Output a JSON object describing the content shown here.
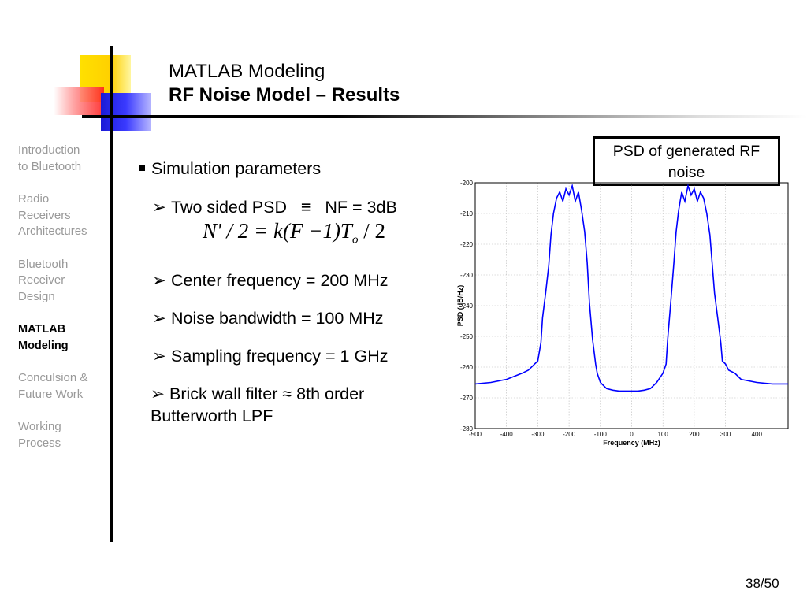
{
  "slide": {
    "title": "MATLAB Modeling",
    "subtitle": "RF Noise Model – Results",
    "page_number": "38/50"
  },
  "nav": {
    "items": [
      {
        "line1": "Introduction",
        "line2": "to Bluetooth",
        "line3": ""
      },
      {
        "line1": "Radio",
        "line2": "Receivers",
        "line3": "Architectures"
      },
      {
        "line1": "Bluetooth",
        "line2": "Receiver",
        "line3": "Design"
      },
      {
        "line1": "MATLAB",
        "line2": "Modeling",
        "line3": ""
      },
      {
        "line1": "Conculsion &",
        "line2": "Future Work",
        "line3": ""
      },
      {
        "line1": "Working",
        "line2": "Process",
        "line3": ""
      }
    ]
  },
  "content": {
    "main_bullet": "Simulation parameters",
    "sub_bullets": {
      "psd": "Two sided PSD   ≡   NF = 3dB",
      "formula_lhs": "N' / 2 = k(F −1)T",
      "formula_sub": "o",
      "formula_rhs": " / 2",
      "center_freq": "Center frequency = 200 MHz",
      "noise_bw": "Noise bandwidth = 100 MHz",
      "sampling": "Sampling frequency = 1 GHz",
      "filter_line1": "Brick wall filter ≈ 8th order",
      "filter_line2": "Butterworth LPF"
    }
  },
  "callout": {
    "line1": "PSD of generated RF",
    "line2": "noise"
  },
  "chart_data": {
    "type": "line",
    "title": "",
    "xlabel": "Frequency (MHz)",
    "ylabel": "PSD (dB/Hz)",
    "xlim": [
      -500,
      500
    ],
    "ylim": [
      -280,
      -200
    ],
    "xticks": [
      -500,
      -400,
      -300,
      -200,
      -100,
      0,
      100,
      200,
      300,
      400
    ],
    "yticks": [
      -200,
      -210,
      -220,
      -230,
      -240,
      -250,
      -260,
      -270,
      -280
    ],
    "grid": true,
    "series": [
      {
        "name": "PSD",
        "color": "#0000ff",
        "x": [
          -500,
          -450,
          -400,
          -350,
          -330,
          -310,
          -300,
          -290,
          -285,
          -275,
          -265,
          -258,
          -250,
          -240,
          -230,
          -220,
          -210,
          -200,
          -190,
          -180,
          -170,
          -160,
          -150,
          -142,
          -135,
          -125,
          -115,
          -110,
          -100,
          -80,
          -60,
          -40,
          -20,
          0,
          20,
          40,
          60,
          80,
          100,
          110,
          115,
          125,
          135,
          142,
          150,
          160,
          170,
          180,
          190,
          200,
          210,
          220,
          230,
          240,
          250,
          258,
          265,
          275,
          285,
          290,
          300,
          310,
          330,
          350,
          400,
          450,
          500
        ],
        "y": [
          -265.5,
          -265,
          -264,
          -262,
          -261,
          -259,
          -258,
          -252,
          -244,
          -236,
          -227,
          -217,
          -210,
          -205,
          -203,
          -206,
          -202,
          -204,
          -201,
          -206,
          -203,
          -209,
          -216,
          -226,
          -239,
          -251,
          -259,
          -262,
          -265,
          -267,
          -267.5,
          -267.8,
          -267.8,
          -267.8,
          -267.8,
          -267.5,
          -267,
          -265,
          -262,
          -259,
          -251,
          -239,
          -226,
          -216,
          -209,
          -203,
          -206,
          -201,
          -204,
          -202,
          -206,
          -203,
          -205,
          -210,
          -217,
          -227,
          -236,
          -244,
          -252,
          -258,
          -259,
          -261,
          -262,
          -264,
          -265,
          -265.5,
          -265.5
        ]
      }
    ]
  }
}
